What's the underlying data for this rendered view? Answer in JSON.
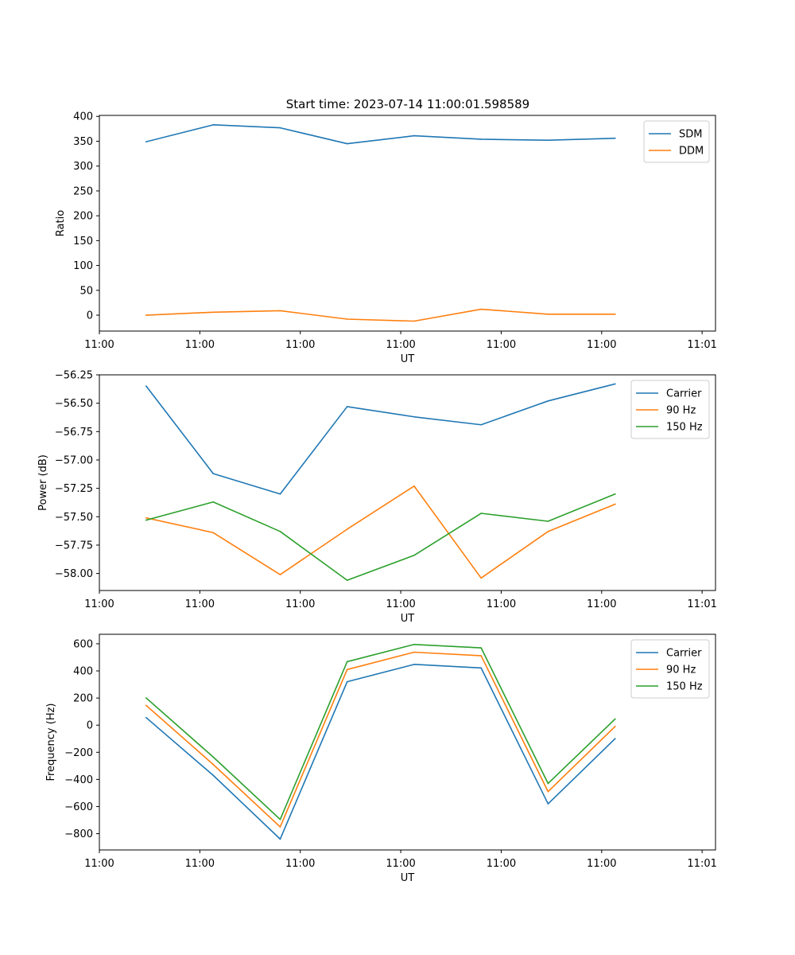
{
  "figure_title": "Start time: 2023-07-14 11:00:01.598589",
  "colors": {
    "blue": "#1f77b4",
    "orange": "#ff7f0e",
    "green": "#2ca02c"
  },
  "chart_data": [
    {
      "type": "line",
      "name": "ratio-chart",
      "title": "Start time: 2023-07-14 11:00:01.598589",
      "xlabel": "UT",
      "ylabel": "Ratio",
      "xlim": [
        -0.7,
        8.5
      ],
      "ylim": [
        -32,
        402
      ],
      "x": [
        0,
        1,
        2,
        3,
        4,
        5,
        6,
        7
      ],
      "x_ticks": [
        -0.7,
        0.8,
        2.3,
        3.8,
        5.3,
        6.8,
        8.3
      ],
      "x_tick_labels": [
        "11:00",
        "11:00",
        "11:00",
        "11:00",
        "11:00",
        "11:00",
        "11:01"
      ],
      "y_ticks": [
        0,
        50,
        100,
        150,
        200,
        250,
        300,
        350,
        400
      ],
      "y_tick_labels": [
        "0",
        "50",
        "100",
        "150",
        "200",
        "250",
        "300",
        "350",
        "400"
      ],
      "legend_position": "upper-right",
      "series": [
        {
          "name": "SDM",
          "color": "#1f77b4",
          "values": [
            349,
            383,
            377,
            345,
            361,
            354,
            352,
            356
          ]
        },
        {
          "name": "DDM",
          "color": "#ff7f0e",
          "values": [
            0,
            6,
            9,
            -8,
            -12,
            12,
            2,
            2
          ]
        }
      ]
    },
    {
      "type": "line",
      "name": "power-chart",
      "title": "",
      "xlabel": "UT",
      "ylabel": "Power (dB)",
      "xlim": [
        -0.7,
        8.5
      ],
      "ylim": [
        -58.15,
        -56.25
      ],
      "x": [
        0,
        1,
        2,
        3,
        4,
        5,
        6,
        7
      ],
      "x_ticks": [
        -0.7,
        0.8,
        2.3,
        3.8,
        5.3,
        6.8,
        8.3
      ],
      "x_tick_labels": [
        "11:00",
        "11:00",
        "11:00",
        "11:00",
        "11:00",
        "11:00",
        "11:01"
      ],
      "y_ticks": [
        -56.25,
        -56.5,
        -56.75,
        -57.0,
        -57.25,
        -57.5,
        -57.75,
        -58.0
      ],
      "y_tick_labels": [
        "−56.25",
        "−56.50",
        "−56.75",
        "−57.00",
        "−57.25",
        "−57.50",
        "−57.75",
        "−58.00"
      ],
      "legend_position": "upper-right",
      "series": [
        {
          "name": "Carrier",
          "color": "#1f77b4",
          "values": [
            -56.35,
            -57.12,
            -57.3,
            -56.53,
            -56.62,
            -56.69,
            -56.48,
            -56.33
          ]
        },
        {
          "name": "90 Hz",
          "color": "#ff7f0e",
          "values": [
            -57.51,
            -57.64,
            -58.01,
            -57.61,
            -57.23,
            -58.04,
            -57.63,
            -57.39
          ]
        },
        {
          "name": "150 Hz",
          "color": "#2ca02c",
          "values": [
            -57.53,
            -57.37,
            -57.63,
            -58.06,
            -57.84,
            -57.47,
            -57.54,
            -57.3
          ]
        }
      ]
    },
    {
      "type": "line",
      "name": "frequency-chart",
      "title": "",
      "xlabel": "UT",
      "ylabel": "Frequency (Hz)",
      "xlim": [
        -0.7,
        8.5
      ],
      "ylim": [
        -920,
        670
      ],
      "x": [
        0,
        1,
        2,
        3,
        4,
        5,
        6,
        7
      ],
      "x_ticks": [
        -0.7,
        0.8,
        2.3,
        3.8,
        5.3,
        6.8,
        8.3
      ],
      "x_tick_labels": [
        "11:00",
        "11:00",
        "11:00",
        "11:00",
        "11:00",
        "11:00",
        "11:01"
      ],
      "y_ticks": [
        600,
        400,
        200,
        0,
        -200,
        -400,
        -600,
        -800
      ],
      "y_tick_labels": [
        "600",
        "400",
        "200",
        "0",
        "−200",
        "−400",
        "−600",
        "−800"
      ],
      "legend_position": "upper-right",
      "series": [
        {
          "name": "Carrier",
          "color": "#1f77b4",
          "values": [
            55,
            -370,
            -840,
            320,
            448,
            422,
            -580,
            -100
          ]
        },
        {
          "name": "90 Hz",
          "color": "#ff7f0e",
          "values": [
            145,
            -290,
            -750,
            410,
            538,
            512,
            -490,
            -10
          ]
        },
        {
          "name": "150 Hz",
          "color": "#2ca02c",
          "values": [
            200,
            -235,
            -695,
            468,
            595,
            570,
            -430,
            45
          ]
        }
      ]
    }
  ]
}
